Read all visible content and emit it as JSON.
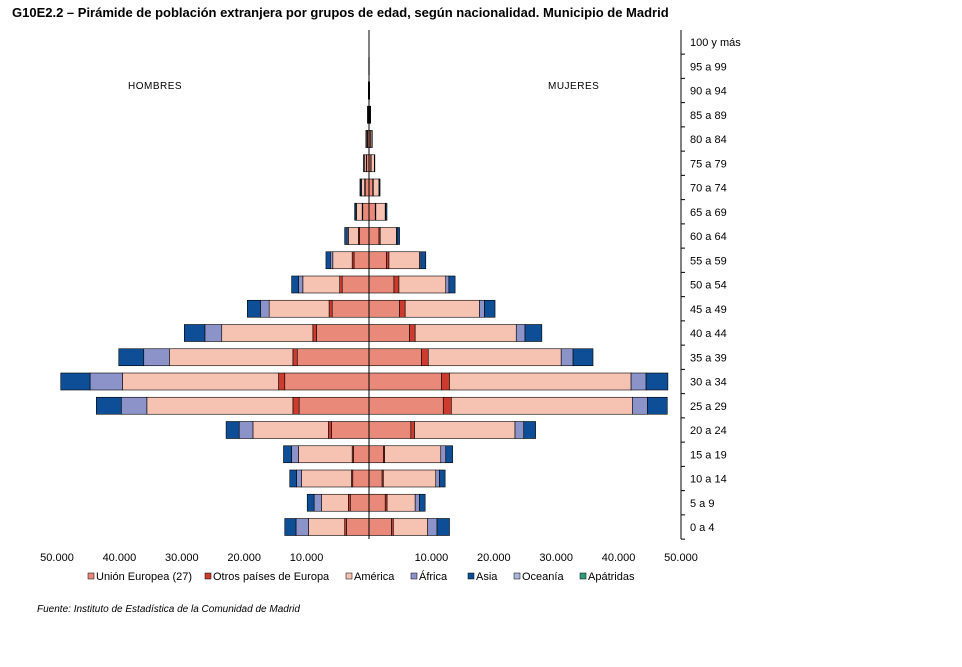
{
  "chart_data": {
    "type": "bar",
    "title": "G10E2.2 – Pirámide de población extranjera por grupos de edad, según nacionalidad. Municipio de Madrid",
    "left_label": "HOMBRES",
    "right_label": "MUJERES",
    "source": "Fuente: Instituto de Estadística de la Comunidad de Madrid",
    "age_groups": [
      "0 a 4",
      "5 a 9",
      "10 a 14",
      "15 a 19",
      "20 a 24",
      "25 a 29",
      "30 a 34",
      "35 a 39",
      "40 a 44",
      "45 a 49",
      "50 a 54",
      "55 a 59",
      "60 a 64",
      "65 a 69",
      "70 a 74",
      "75 a 79",
      "80 a 84",
      "85 a 89",
      "90 a 94",
      "95 a 99",
      "100 y más"
    ],
    "x_ticks": [
      50000,
      40000,
      30000,
      20000,
      10000,
      0,
      10000,
      20000,
      30000,
      40000,
      50000
    ],
    "x_tick_labels": [
      "50.000",
      "40.000",
      "30.000",
      "20.000",
      "10.000",
      "",
      "10.000",
      "20.000",
      "30.000",
      "40.000",
      "50.000"
    ],
    "xlim": [
      -50000,
      50000
    ],
    "series_names": [
      "Unión Europea (27)",
      "Otros países de Europa",
      "América",
      "África",
      "Asia",
      "Oceanía",
      "Apátridas"
    ],
    "series_colors": [
      "#E8897A",
      "#CC3B2E",
      "#F6C2B2",
      "#8B93C9",
      "#0E4E96",
      "#A9B7E0",
      "#2E9C75"
    ],
    "hombres": [
      [
        3600,
        300,
        5800,
        2000,
        1800,
        0,
        0
      ],
      [
        3000,
        300,
        4300,
        1200,
        1100,
        0,
        0
      ],
      [
        2600,
        200,
        8000,
        800,
        1100,
        0,
        0
      ],
      [
        2500,
        200,
        8600,
        1100,
        1300,
        0,
        0
      ],
      [
        6000,
        500,
        12100,
        2200,
        2100,
        0,
        0
      ],
      [
        11200,
        1000,
        23400,
        4100,
        4000,
        0,
        0
      ],
      [
        13500,
        1000,
        25000,
        5200,
        4700,
        0,
        0
      ],
      [
        11500,
        700,
        19800,
        4100,
        4000,
        0,
        0
      ],
      [
        8400,
        600,
        14600,
        2700,
        3300,
        0,
        0
      ],
      [
        5900,
        500,
        9600,
        1400,
        2100,
        0,
        0
      ],
      [
        4300,
        400,
        5900,
        700,
        1100,
        0,
        0
      ],
      [
        2400,
        300,
        3100,
        400,
        700,
        0,
        0
      ],
      [
        1500,
        200,
        1600,
        200,
        400,
        0,
        0
      ],
      [
        1000,
        100,
        900,
        100,
        200,
        0,
        0
      ],
      [
        600,
        100,
        500,
        100,
        150,
        0,
        0
      ],
      [
        400,
        50,
        300,
        50,
        80,
        0,
        0
      ],
      [
        250,
        30,
        150,
        30,
        40,
        0,
        0
      ],
      [
        120,
        20,
        70,
        10,
        20,
        0,
        0
      ],
      [
        50,
        10,
        30,
        5,
        10,
        0,
        0
      ],
      [
        20,
        5,
        10,
        2,
        3,
        0,
        0
      ],
      [
        5,
        1,
        3,
        1,
        1,
        0,
        0
      ]
    ],
    "mujeres": [
      [
        3600,
        300,
        5500,
        1500,
        2000,
        0,
        0
      ],
      [
        2600,
        300,
        4500,
        700,
        900,
        0,
        0
      ],
      [
        2100,
        200,
        8400,
        600,
        900,
        0,
        0
      ],
      [
        2300,
        200,
        9000,
        800,
        1100,
        0,
        0
      ],
      [
        6700,
        600,
        16100,
        1400,
        1900,
        0,
        0
      ],
      [
        11900,
        1300,
        29000,
        2400,
        3200,
        0,
        0
      ],
      [
        11600,
        1300,
        29100,
        2400,
        3500,
        0,
        0
      ],
      [
        8400,
        1100,
        21300,
        1900,
        3200,
        0,
        0
      ],
      [
        6500,
        900,
        16200,
        1400,
        2700,
        0,
        0
      ],
      [
        4900,
        900,
        11900,
        800,
        1700,
        0,
        0
      ],
      [
        4000,
        800,
        7500,
        500,
        1000,
        0,
        0
      ],
      [
        2800,
        400,
        4900,
        200,
        800,
        0,
        0
      ],
      [
        1600,
        200,
        2600,
        100,
        400,
        0,
        0
      ],
      [
        1000,
        100,
        1500,
        80,
        200,
        0,
        0
      ],
      [
        600,
        100,
        900,
        50,
        120,
        0,
        0
      ],
      [
        300,
        50,
        500,
        30,
        60,
        0,
        0
      ],
      [
        200,
        30,
        250,
        20,
        30,
        0,
        0
      ],
      [
        100,
        20,
        120,
        10,
        15,
        0,
        0
      ],
      [
        40,
        10,
        50,
        5,
        5,
        0,
        0
      ],
      [
        15,
        5,
        15,
        2,
        2,
        0,
        0
      ],
      [
        5,
        1,
        5,
        1,
        1,
        0,
        0
      ]
    ]
  }
}
